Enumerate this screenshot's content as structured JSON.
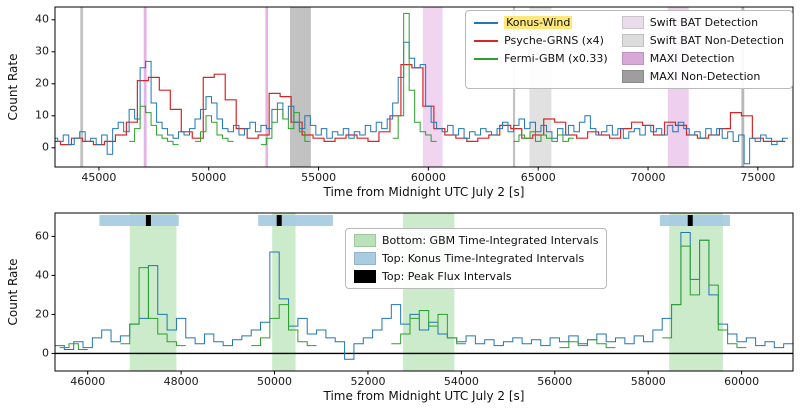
{
  "figure": {
    "ylabel_top": "Count Rate",
    "ylabel_bottom": "Count Rate",
    "xlabel_top": "Time from Midnight UTC July 2 [s]",
    "xlabel_bottom": "Time from Midnight UTC July 2 [s]"
  },
  "chart_data": [
    {
      "type": "line",
      "panel": "top",
      "xlabel": "Time from Midnight UTC July 2 [s]",
      "ylabel": "Count Rate",
      "xlim": [
        43000,
        76600
      ],
      "ylim": [
        -6,
        44
      ],
      "xticks": [
        45000,
        50000,
        55000,
        60000,
        65000,
        70000,
        75000
      ],
      "yticks": [
        0,
        10,
        20,
        30,
        40
      ],
      "series": [
        {
          "name": "Psyche-GRNS (x4)",
          "color": "#d62728",
          "lw": 1.2,
          "x0": 43000,
          "dx": 500,
          "values": [
            2,
            1,
            3,
            2,
            1,
            2,
            4,
            8,
            21,
            22,
            18,
            12,
            5,
            3,
            22,
            23,
            15,
            6,
            3,
            4,
            17,
            16,
            8,
            4,
            3,
            2,
            3,
            4,
            3,
            2,
            5,
            10,
            26,
            25,
            13,
            6,
            4,
            3,
            2,
            3,
            4,
            7,
            6,
            3,
            4,
            9,
            8,
            4,
            3,
            5,
            4,
            3,
            6,
            8,
            7,
            4,
            8,
            7,
            4,
            3,
            4,
            6,
            11,
            10,
            3,
            2,
            2
          ]
        },
        {
          "name": "Konus-Wind",
          "color": "#1f77b4",
          "lw": 1.0,
          "x0": 43000,
          "dx": 250,
          "values": [
            3,
            2,
            4,
            1,
            3,
            5,
            2,
            3,
            1,
            4,
            -2,
            6,
            8,
            5,
            12,
            9,
            25,
            27,
            14,
            8,
            6,
            4,
            3,
            5,
            4,
            6,
            9,
            12,
            16,
            14,
            9,
            6,
            5,
            7,
            4,
            6,
            8,
            5,
            7,
            6,
            12,
            14,
            9,
            13,
            8,
            6,
            10,
            7,
            4,
            6,
            3,
            5,
            4,
            6,
            3,
            5,
            4,
            7,
            5,
            8,
            6,
            9,
            14,
            22,
            33,
            28,
            25,
            26,
            13,
            8,
            6,
            5,
            7,
            4,
            6,
            3,
            5,
            4,
            6,
            5,
            4,
            6,
            8,
            5,
            7,
            9,
            6,
            8,
            5,
            7,
            5,
            3,
            6,
            4,
            7,
            5,
            8,
            10,
            6,
            4,
            5,
            7,
            4,
            6,
            3,
            5,
            6,
            4,
            7,
            5,
            6,
            4,
            7,
            5,
            8,
            6,
            4,
            5,
            3,
            6,
            4,
            6,
            3,
            5,
            2,
            4,
            -5,
            3,
            2,
            4,
            3,
            1,
            2,
            3
          ]
        },
        {
          "name": "Fermi-GBM (x0.33)",
          "color": "#2ca02c",
          "lw": 1.0,
          "segments": [
            {
              "x0": 46500,
              "dx": 250,
              "values": [
                2,
                6,
                13,
                11,
                7,
                4,
                3,
                2,
                1
              ]
            },
            {
              "x0": 49500,
              "dx": 250,
              "values": [
                2,
                5,
                10,
                8,
                4,
                3,
                2
              ]
            },
            {
              "x0": 52500,
              "dx": 250,
              "values": [
                1,
                3,
                8,
                12,
                9,
                6,
                11,
                5,
                2
              ]
            },
            {
              "x0": 58500,
              "dx": 250,
              "values": [
                3,
                10,
                42,
                18,
                8,
                5,
                4,
                2
              ]
            },
            {
              "x0": 64000,
              "dx": 250,
              "values": [
                2,
                4,
                3,
                5,
                2,
                4,
                3,
                2,
                4,
                2,
                3
              ]
            }
          ]
        }
      ],
      "bands": [
        {
          "x0": 44150,
          "x1": 44280,
          "color": "#aaaaaa",
          "alpha": 0.7
        },
        {
          "x0": 47040,
          "x1": 47170,
          "color": "#dda0dd",
          "alpha": 0.8
        },
        {
          "x0": 52580,
          "x1": 52700,
          "color": "#dda0dd",
          "alpha": 0.8
        },
        {
          "x0": 53700,
          "x1": 54650,
          "color": "#777777",
          "alpha": 0.45
        },
        {
          "x0": 59750,
          "x1": 60650,
          "color": "#dda0dd",
          "alpha": 0.45
        },
        {
          "x0": 63850,
          "x1": 63950,
          "color": "#aaaaaa",
          "alpha": 0.7
        },
        {
          "x0": 64600,
          "x1": 65600,
          "color": "#c8c8c8",
          "alpha": 0.55
        },
        {
          "x0": 70900,
          "x1": 71850,
          "color": "#dda0dd",
          "alpha": 0.5
        },
        {
          "x0": 74250,
          "x1": 74380,
          "color": "#9a9a9a",
          "alpha": 0.7
        }
      ],
      "legend_left": [
        {
          "label": "Konus-Wind",
          "color": "#1f77b4"
        },
        {
          "label": "Psyche-GRNS (x4)",
          "color": "#d62728"
        },
        {
          "label": "Fermi-GBM (x0.33)",
          "color": "#2ca02c"
        }
      ],
      "legend_right": [
        {
          "label": "Swift BAT Detection",
          "color": "#eaddea"
        },
        {
          "label": "Swift BAT Non-Detection",
          "color": "#dcdcdc"
        },
        {
          "label": "MAXI Detection",
          "color": "#d8a9d8"
        },
        {
          "label": "MAXI Non-Detection",
          "color": "#9e9e9e"
        }
      ]
    },
    {
      "type": "line",
      "panel": "bottom",
      "xlabel": "Time from Midnight UTC July 2 [s]",
      "ylabel": "Count Rate",
      "xlim": [
        45300,
        61100
      ],
      "ylim": [
        -9,
        72
      ],
      "xticks": [
        46000,
        48000,
        50000,
        52000,
        54000,
        56000,
        58000,
        60000
      ],
      "yticks": [
        0,
        20,
        40,
        60
      ],
      "zero_line": true,
      "series": [
        {
          "name": "Konus-Wind",
          "color": "#1f77b4",
          "lw": 1.0,
          "x0": 45400,
          "dx": 200,
          "values": [
            4,
            2,
            6,
            3,
            8,
            12,
            6,
            9,
            15,
            18,
            45,
            20,
            12,
            18,
            8,
            5,
            10,
            6,
            4,
            7,
            9,
            12,
            16,
            52,
            28,
            14,
            18,
            10,
            12,
            8,
            6,
            -3,
            5,
            8,
            12,
            18,
            25,
            15,
            20,
            12,
            16,
            10,
            8,
            6,
            9,
            5,
            7,
            4,
            6,
            8,
            5,
            7,
            4,
            8,
            6,
            9,
            5,
            7,
            10,
            6,
            8,
            5,
            9,
            6,
            12,
            18,
            25,
            62,
            38,
            58,
            30,
            15,
            10,
            6,
            8,
            4,
            6,
            3,
            5
          ]
        },
        {
          "name": "Fermi-GBM",
          "color": "#2ca02c",
          "lw": 1.0,
          "segments": [
            {
              "x0": 45500,
              "dx": 200,
              "values": [
                3,
                5,
                2
              ]
            },
            {
              "x0": 46800,
              "dx": 200,
              "values": [
                5,
                15,
                44,
                18,
                10,
                6,
                4
              ]
            },
            {
              "x0": 49600,
              "dx": 200,
              "values": [
                4,
                8,
                18,
                25,
                12,
                6,
                4
              ]
            },
            {
              "x0": 52600,
              "dx": 200,
              "values": [
                5,
                10,
                18,
                22,
                14,
                20,
                8,
                5
              ]
            },
            {
              "x0": 56200,
              "dx": 200,
              "values": [
                3,
                6,
                4,
                7,
                5,
                3
              ]
            },
            {
              "x0": 58400,
              "dx": 200,
              "values": [
                8,
                25,
                55,
                30,
                58,
                35,
                12,
                5,
                3
              ]
            }
          ]
        }
      ],
      "interval_bands": [
        {
          "x0": 46900,
          "x1": 47900,
          "color": "#98d898",
          "alpha": 0.5
        },
        {
          "x0": 49950,
          "x1": 50450,
          "color": "#98d898",
          "alpha": 0.5
        },
        {
          "x0": 52750,
          "x1": 53850,
          "color": "#98d898",
          "alpha": 0.5
        },
        {
          "x0": 58450,
          "x1": 59600,
          "color": "#98d898",
          "alpha": 0.5
        }
      ],
      "top_bars": [
        {
          "x0": 46250,
          "x1": 47950,
          "peak": 47300
        },
        {
          "x0": 49650,
          "x1": 51250,
          "peak": 50100
        },
        {
          "x0": 58250,
          "x1": 59750,
          "peak": 58900
        }
      ],
      "top_bar_color": "#a9cce3",
      "legend": [
        {
          "label": "Bottom: GBM Time-Integrated Intervals",
          "color": "#b9e2b9"
        },
        {
          "label": "Top: Konus Time-Integrated Intervals",
          "color": "#a9cce3"
        },
        {
          "label": "Top: Peak Flux Intervals",
          "color": "#000000"
        }
      ]
    }
  ]
}
